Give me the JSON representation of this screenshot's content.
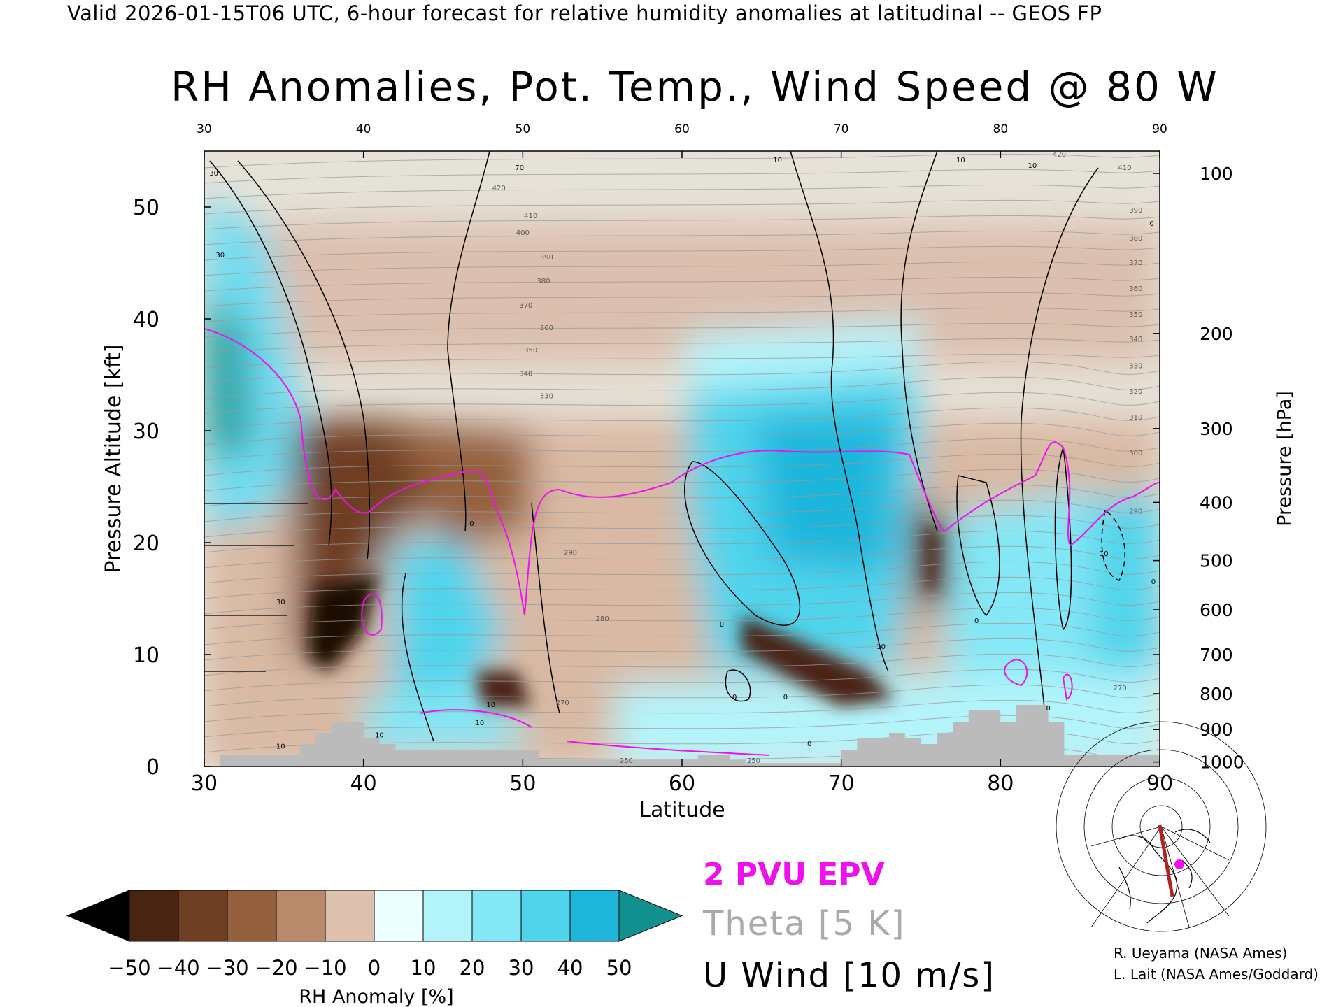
{
  "header": "Valid 2026-01-15T06 UTC, 6-hour forecast for relative humidity anomalies at latitudinal -- GEOS FP",
  "chart_data": {
    "type": "heatmap",
    "title": "RH Anomalies, Pot. Temp., Wind Speed @ 80 W",
    "xlabel": "Latitude",
    "ylabel_left": "Pressure Altitude [kft]",
    "ylabel_right": "Pressure [hPa]",
    "xlim": [
      30,
      90
    ],
    "ylim": [
      0,
      55
    ],
    "x_ticks": [
      "30",
      "40",
      "50",
      "60",
      "70",
      "80",
      "90"
    ],
    "top_ticks": [
      "30",
      "40",
      "50",
      "60",
      "70",
      "80",
      "90"
    ],
    "y_ticks": [
      "0",
      "10",
      "20",
      "30",
      "40",
      "50"
    ],
    "right_ticks": [
      {
        "label": "100",
        "alt": 53.0
      },
      {
        "label": "200",
        "alt": 38.7
      },
      {
        "label": "300",
        "alt": 30.2
      },
      {
        "label": "400",
        "alt": 23.6
      },
      {
        "label": "500",
        "alt": 18.4
      },
      {
        "label": "600",
        "alt": 14.0
      },
      {
        "label": "700",
        "alt": 10.0
      },
      {
        "label": "800",
        "alt": 6.5
      },
      {
        "label": "900",
        "alt": 3.3
      },
      {
        "label": "1000",
        "alt": 0.4
      }
    ],
    "theta_labels": [
      {
        "label": "420",
        "x": 48.5,
        "y": 51.5
      },
      {
        "label": "410",
        "x": 50.5,
        "y": 49.0
      },
      {
        "label": "400",
        "x": 50.0,
        "y": 47.5
      },
      {
        "label": "390",
        "x": 51.5,
        "y": 45.3
      },
      {
        "label": "380",
        "x": 51.3,
        "y": 43.2
      },
      {
        "label": "370",
        "x": 50.2,
        "y": 41.0
      },
      {
        "label": "360",
        "x": 51.5,
        "y": 39.0
      },
      {
        "label": "350",
        "x": 50.5,
        "y": 37.0
      },
      {
        "label": "340",
        "x": 50.2,
        "y": 34.9
      },
      {
        "label": "330",
        "x": 51.5,
        "y": 32.9
      },
      {
        "label": "290",
        "x": 53.0,
        "y": 18.9
      },
      {
        "label": "280",
        "x": 55.0,
        "y": 13.0
      },
      {
        "label": "270",
        "x": 52.5,
        "y": 5.5
      },
      {
        "label": "250",
        "x": 56.5,
        "y": 0.3
      },
      {
        "label": "250",
        "x": 64.5,
        "y": 0.3
      },
      {
        "label": "410",
        "x": 87.8,
        "y": 53.3
      },
      {
        "label": "420",
        "x": 83.7,
        "y": 54.5
      },
      {
        "label": "390",
        "x": 88.5,
        "y": 49.5
      },
      {
        "label": "380",
        "x": 88.5,
        "y": 47.0
      },
      {
        "label": "370",
        "x": 88.5,
        "y": 44.8
      },
      {
        "label": "360",
        "x": 88.5,
        "y": 42.5
      },
      {
        "label": "350",
        "x": 88.5,
        "y": 40.2
      },
      {
        "label": "340",
        "x": 88.5,
        "y": 38.0
      },
      {
        "label": "330",
        "x": 88.5,
        "y": 35.6
      },
      {
        "label": "320",
        "x": 88.5,
        "y": 33.3
      },
      {
        "label": "310",
        "x": 88.5,
        "y": 31.0
      },
      {
        "label": "300",
        "x": 88.5,
        "y": 27.8
      },
      {
        "label": "290",
        "x": 88.5,
        "y": 22.6
      },
      {
        "label": "270",
        "x": 87.5,
        "y": 6.8
      }
    ],
    "wind_labels": [
      {
        "label": "30",
        "x": 30.6,
        "y": 52.8
      },
      {
        "label": "30",
        "x": 31.0,
        "y": 45.5
      },
      {
        "label": "30",
        "x": 34.8,
        "y": 14.5
      },
      {
        "label": "10",
        "x": 34.8,
        "y": 1.6
      },
      {
        "label": "10",
        "x": 41.0,
        "y": 2.6
      },
      {
        "label": "10",
        "x": 47.3,
        "y": 3.7
      },
      {
        "label": "10",
        "x": 48.0,
        "y": 5.3
      },
      {
        "label": "0",
        "x": 46.8,
        "y": 21.5
      },
      {
        "label": "70",
        "x": 49.8,
        "y": 53.3
      },
      {
        "label": "10",
        "x": 66.0,
        "y": 54.0
      },
      {
        "label": "10",
        "x": 82.0,
        "y": 53.5
      },
      {
        "label": "10",
        "x": 77.5,
        "y": 54.0
      },
      {
        "label": "10",
        "x": 72.5,
        "y": 10.5
      },
      {
        "label": "0",
        "x": 62.5,
        "y": 12.5
      },
      {
        "label": "0",
        "x": 63.3,
        "y": 6.0
      },
      {
        "label": "0",
        "x": 66.5,
        "y": 6.0
      },
      {
        "label": "0",
        "x": 68.0,
        "y": 1.8
      },
      {
        "label": "0",
        "x": 78.5,
        "y": 12.8
      },
      {
        "label": "0",
        "x": 83.0,
        "y": 5.0
      },
      {
        "label": "10",
        "x": 86.5,
        "y": 18.8
      },
      {
        "label": "0",
        "x": 89.6,
        "y": 16.3
      },
      {
        "label": "0",
        "x": 89.5,
        "y": 48.3
      }
    ],
    "colorbar": {
      "label": "RH Anomaly [%]",
      "ticks": [
        "-50",
        "-40",
        "-30",
        "-20",
        "-10",
        "0",
        "10",
        "20",
        "30",
        "40",
        "50"
      ],
      "colors": [
        "#1c0a03",
        "#4a2412",
        "#6e3e22",
        "#94603e",
        "#b88a6b",
        "#ddc0ad",
        "#eeffff",
        "#b3f4fb",
        "#84e7f5",
        "#4fd4ec",
        "#1fb6dc",
        "#0988ad"
      ],
      "under_color": "#000000",
      "over_color": "#128f8f"
    }
  },
  "legend": {
    "epv": "2 PVU EPV",
    "theta": "Theta [5 K]",
    "uwind": "U Wind [10 m/s]"
  },
  "credits": [
    "R. Ueyama (NASA Ames)",
    "L. Lait (NASA Ames/Goddard)"
  ],
  "colors": {
    "epv": "#ee11ee",
    "theta": "#999999",
    "terrain": "#bbbbbb",
    "cross_section_path": "#b22222",
    "location_marker": "#ee11ee"
  }
}
